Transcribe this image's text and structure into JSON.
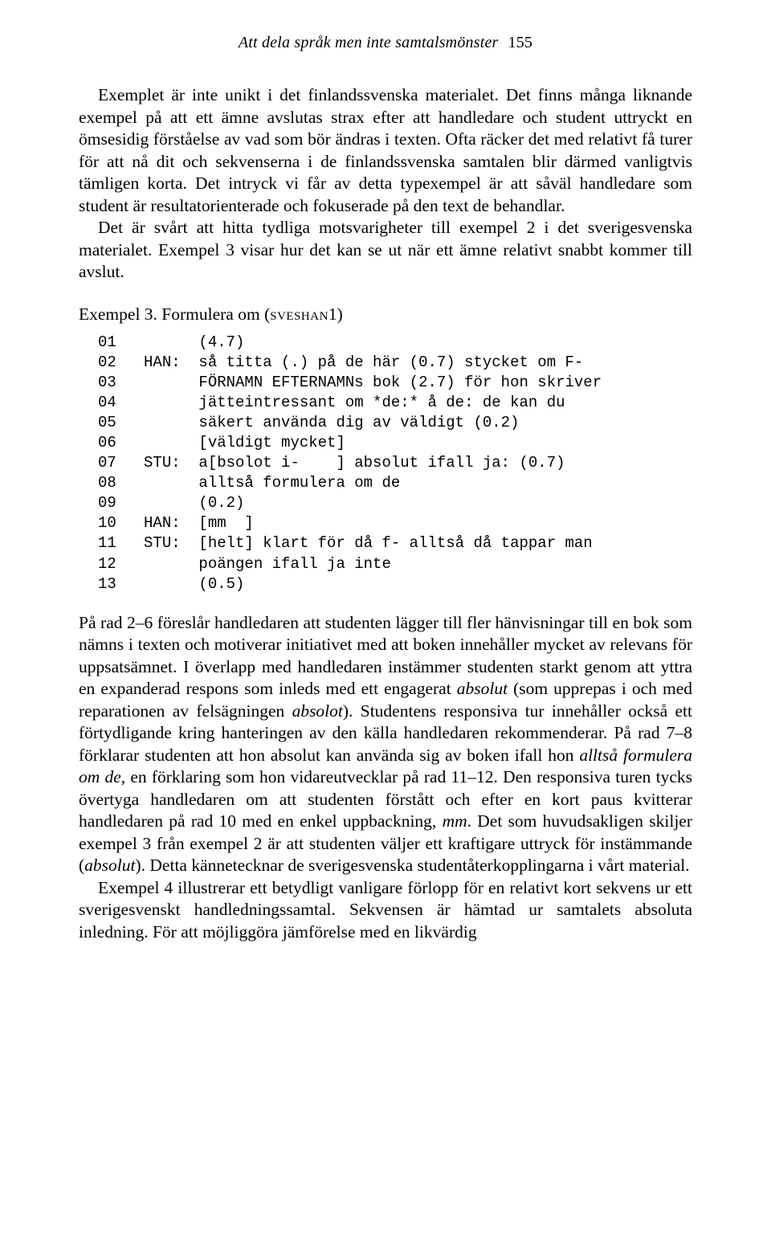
{
  "header": {
    "title": "Att dela språk men inte samtalsmönster",
    "page_number": "155"
  },
  "paragraphs": {
    "p1": "Exemplet är inte unikt i det finlandssvenska materialet. Det finns många liknande exempel på att ett ämne avslutas strax efter att handledare och student uttryckt en ömsesidig förståelse av vad som bör ändras i texten. Ofta räcker det med relativt få turer för att nå dit och sekvenserna i de finlandssvenska samtalen blir därmed vanligtvis tämligen korta. Det intryck vi får av detta typexempel är att såväl handledare som student är resultat­orienterade och fokuserade på den text de behandlar.",
    "p2": "Det är svårt att hitta tydliga motsvarigheter till exempel 2 i det sverige­svenska materialet. Exempel 3 visar hur det kan se ut när ett ämne relativt snabbt kommer till avslut.",
    "p3_pre": "På rad 2–6 föreslår handledaren att studenten lägger till fler hänvisningar till en bok som nämns i texten och motiverar initiativet med att boken innehåller mycket av relevans för uppsatsämnet. I överlapp med handledaren instäm­mer studenten starkt genom att yttra en expanderad respons som inleds med ett engagerat ",
    "p3_it1": "absolut",
    "p3_mid1": " (som upprepas i och med reparationen av felsägningen ",
    "p3_it2": "absolot",
    "p3_mid2": "). Studentens responsiva tur innehåller också ett förtydligande kring hanteringen av den källa handledaren rekommenderar. På rad 7–8 förklarar studenten att hon absolut kan använda sig av boken ifall hon ",
    "p3_it3": "alltså formulera om de",
    "p3_mid3": ", en förklaring som hon vidareutvecklar på rad 11–12. Den responsiva turen tycks övertyga handledaren om att studenten förstått och efter en kort paus kvitterar handledaren på rad 10 med en enkel uppback­ning, ",
    "p3_it4": "mm",
    "p3_mid4": ". Det som huvudsakligen skiljer exempel 3 från exempel 2 är att studenten väljer ett kraftigare uttryck för instämmande (",
    "p3_it5": "absolut",
    "p3_post": "). Detta kännetecknar de sverigesvenska studentåterkopplingarna i vårt material.",
    "p4": "Exempel 4 illustrerar ett betydligt vanligare förlopp för en relativt kort sekvens ur ett sverigesvenskt handledningssamtal. Sekvensen är hämtad ur samtalets absoluta inledning. För att möjliggöra jämförelse med en likvärdig"
  },
  "example": {
    "label_pre": "Exempel 3. Formulera om (",
    "label_sc": "sveshan",
    "label_post": "1)",
    "lines": "01         (4.7)\n02   HAN:  så titta (.) på de här (0.7) stycket om F-\n03         FÖRNAMN EFTERNAMNs bok (2.7) för hon skriver\n04         jätteintressant om *de:* å de: de kan du\n05         säkert använda dig av väldigt (0.2)\n06         [väldigt mycket]\n07   STU:  a[bsolot i-    ] absolut ifall ja: (0.7)\n08         alltså formulera om de\n09         (0.2)\n10   HAN:  [mm  ]\n11   STU:  [helt] klart för då f- alltså då tappar man\n12         poängen ifall ja inte\n13         (0.5)"
  }
}
